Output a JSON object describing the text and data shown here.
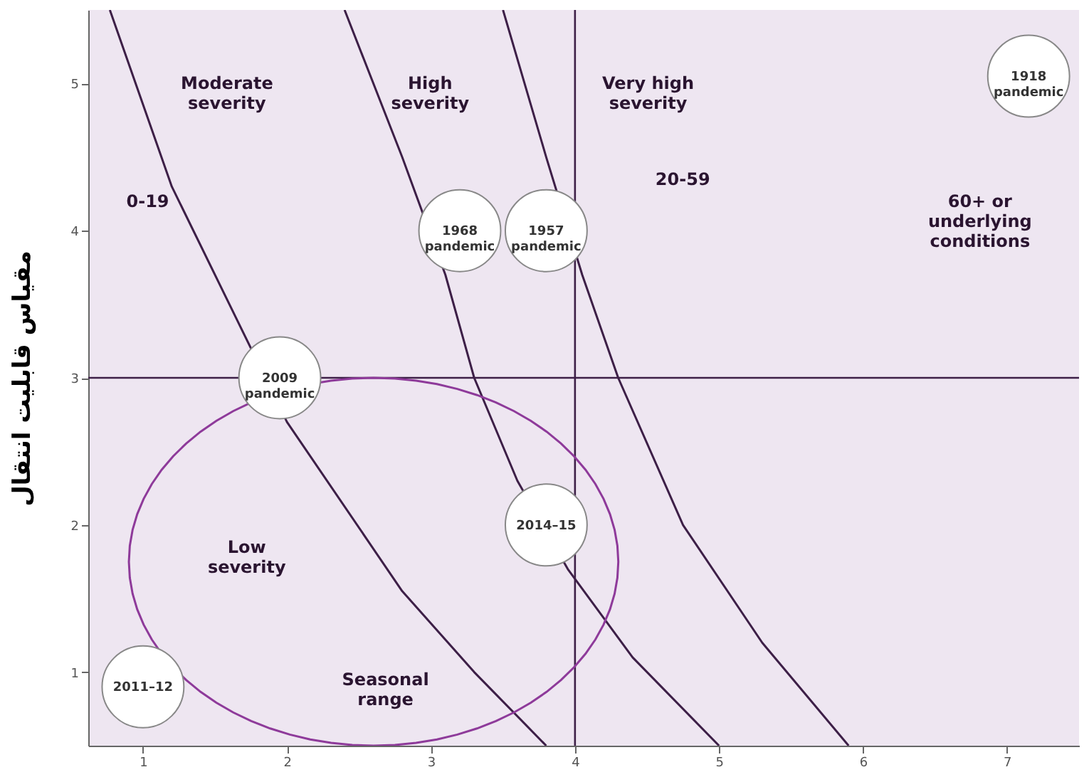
{
  "chart_data": {
    "type": "scatter",
    "ylabel": "مقیاس قابلیت انتقال",
    "xlim": [
      0.62,
      7.5
    ],
    "ylim": [
      0.5,
      5.5
    ],
    "xticks": [
      1,
      2,
      3,
      4,
      5,
      6,
      7
    ],
    "yticks": [
      1,
      2,
      3,
      4,
      5
    ],
    "grid": false,
    "series": [
      {
        "type": "line",
        "color": "#3d1f47",
        "x": [
          3.5,
          3.8,
          4.05,
          4.3,
          4.75,
          5.3,
          5.9
        ],
        "values": [
          5.5,
          4.5,
          3.7,
          3,
          2,
          1.2,
          0.5
        ]
      },
      {
        "type": "line",
        "color": "#3d1f47",
        "x": [
          2.4,
          2.8,
          3.1,
          3.3,
          3.6,
          3.95,
          4.4,
          5
        ],
        "values": [
          5.5,
          4.5,
          3.7,
          3,
          2.3,
          1.7,
          1.1,
          0.5
        ]
      },
      {
        "type": "line",
        "color": "#3d1f47",
        "x": [
          0.77,
          1.2,
          1.6,
          2,
          2.8,
          3.3,
          3.8
        ],
        "values": [
          5.5,
          4.3,
          3.5,
          2.7,
          1.55,
          1,
          0.5
        ]
      },
      {
        "color": "#ffffff",
        "x": [
          1,
          1.95,
          3.2,
          3.8,
          3.8,
          7.15
        ],
        "values": [
          0.9,
          3,
          4,
          4,
          2,
          5.05
        ]
      }
    ],
    "ref_lines": [
      {
        "axis": "x",
        "value": 4,
        "color": "#3d1f47"
      },
      {
        "axis": "y",
        "value": 3,
        "color": "#3d1f47"
      }
    ],
    "annotations": [
      "Moderate\nseverity",
      "High\nseverity",
      "Very high\nseverity",
      "Low\nseverity",
      "Seasonal\nrange",
      "0-19",
      "20-59",
      "60+ or\nunderlying\nconditions",
      {
        "text": "2011–12",
        "x": 1,
        "y": 0.9
      },
      {
        "text": "2009\npandemic",
        "x": 1.95,
        "y": 3
      },
      {
        "text": "1968\npandemic",
        "x": 3.2,
        "y": 4
      },
      {
        "text": "1957\npandemic",
        "x": 3.8,
        "y": 4
      },
      {
        "text": "2014–15",
        "x": 3.8,
        "y": 2
      },
      {
        "text": "1918\npandemic",
        "x": 7.15,
        "y": 5.05
      }
    ]
  }
}
